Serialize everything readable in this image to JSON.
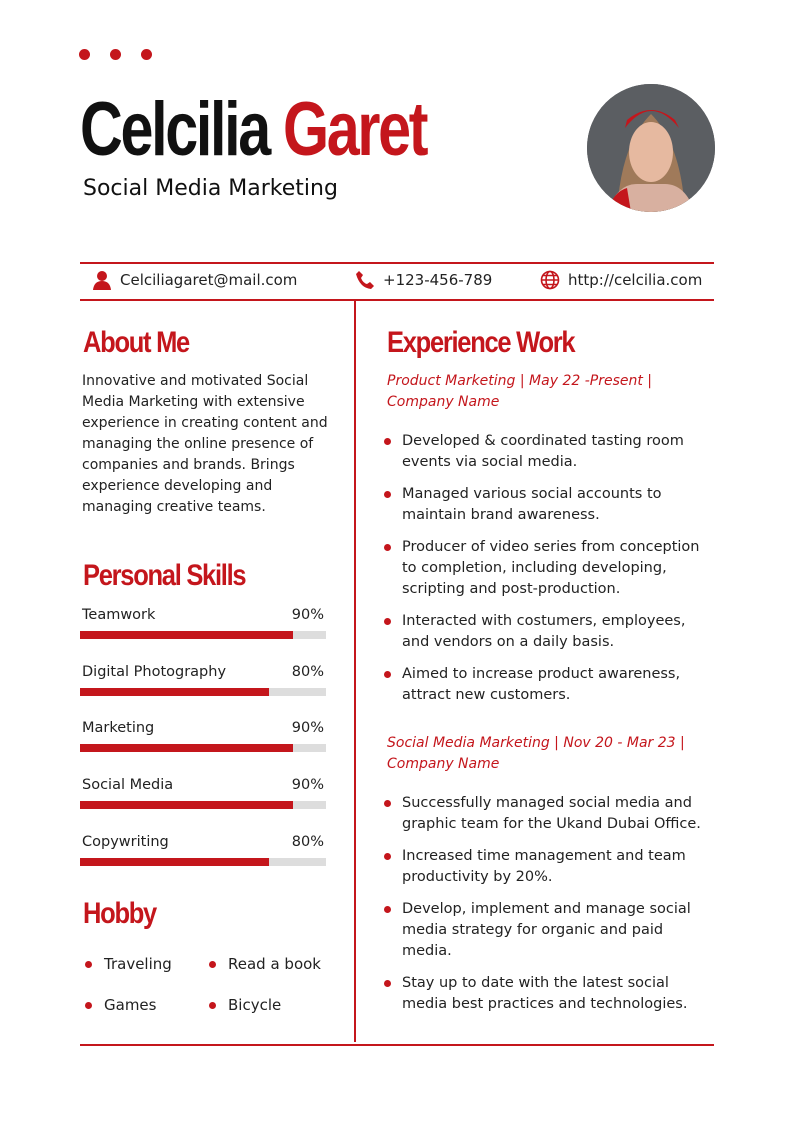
{
  "header": {
    "first_name": "Celcilia",
    "last_name": "Garet",
    "title": "Social Media Marketing",
    "accent": "#c4161c"
  },
  "contact": {
    "email": "Celciliagaret@mail.com",
    "phone": "+123-456-789",
    "website": "http://celcilia.com"
  },
  "about": {
    "heading": "About Me",
    "text": "Innovative and motivated Social Media Marketing with extensive experience in creating content and managing the online presence of companies and brands. Brings experience developing and managing creative teams."
  },
  "skills": {
    "heading": "Personal Skills",
    "items": [
      {
        "name": "Teamwork",
        "percent_label": "90%",
        "level": 90
      },
      {
        "name": "Digital Photography",
        "percent_label": "80%",
        "level": 80
      },
      {
        "name": "Marketing",
        "percent_label": "90%",
        "level": 90
      },
      {
        "name": "Social Media",
        "percent_label": "90%",
        "level": 90
      },
      {
        "name": "Copywriting",
        "percent_label": "80%",
        "level": 80
      }
    ]
  },
  "hobby": {
    "heading": "Hobby",
    "items": [
      "Traveling",
      "Read a book",
      "Games",
      "Bicycle"
    ]
  },
  "experience": {
    "heading": "Experience Work",
    "jobs": [
      {
        "title": "Product Marketing | May 22 -Present | Company Name",
        "bullets": [
          "Developed & coordinated tasting room events via social media.",
          "Managed various social accounts to maintain brand awareness.",
          "Producer of video series from conception to completion, including developing, scripting and post-production.",
          "Interacted with costumers, employees, and vendors on a daily basis.",
          "Aimed to increase product awareness, attract new customers."
        ]
      },
      {
        "title": "Social Media Marketing | Nov 20 - Mar 23 | Company Name",
        "bullets": [
          "Successfully managed social media and graphic team for the Ukand Dubai Office.",
          "Increased time management and team productivity by 20%.",
          "Develop, implement and manage social media strategy for organic and paid media.",
          "Stay up to date with the latest social media best practices and technologies."
        ]
      }
    ]
  }
}
